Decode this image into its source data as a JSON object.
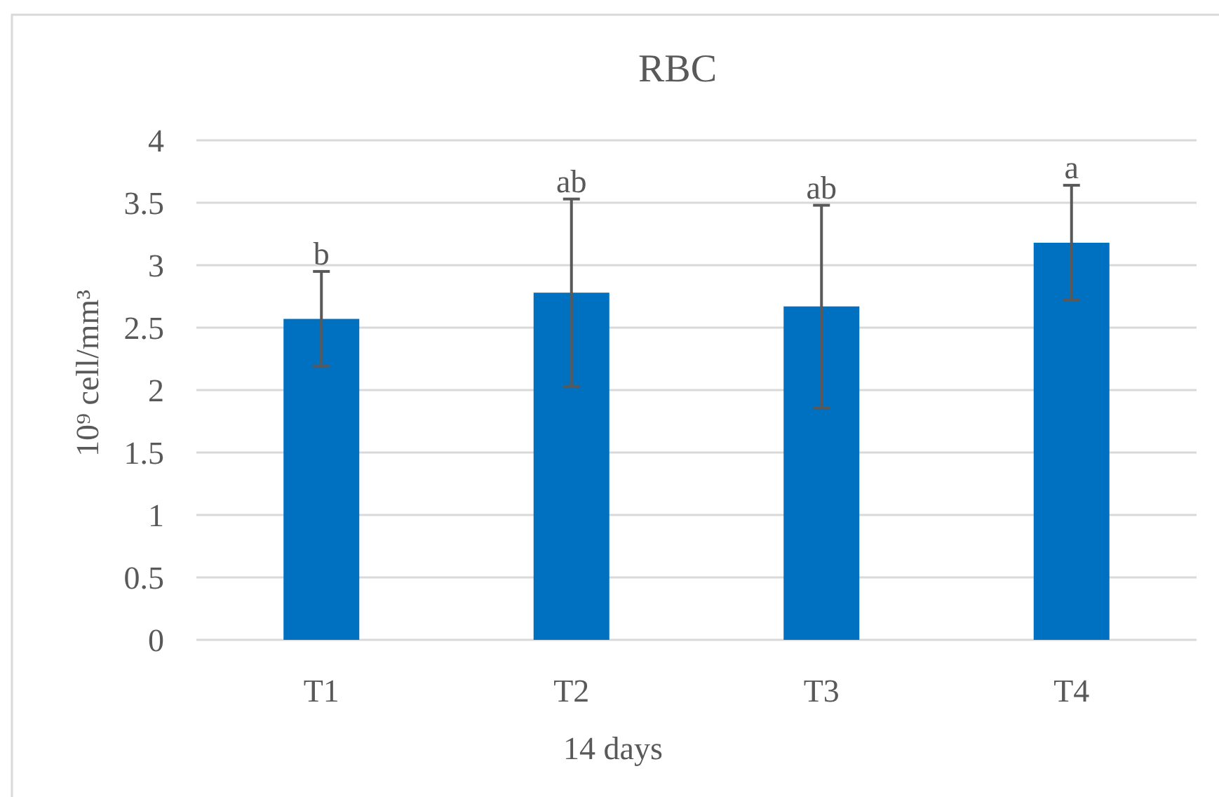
{
  "chart_data": {
    "type": "bar",
    "title": "RBC",
    "xlabel": "14 days",
    "ylabel": "10⁹ cell/mm³",
    "categories": [
      "T1",
      "T2",
      "T3",
      "T4"
    ],
    "values": [
      2.57,
      2.78,
      2.67,
      3.18
    ],
    "errors": [
      0.38,
      0.75,
      0.81,
      0.46
    ],
    "color": "#0070c0",
    "ylim": [
      0,
      4
    ],
    "yticks": [
      0,
      0.5,
      1,
      1.5,
      2,
      2.5,
      3,
      3.5,
      4
    ],
    "grid": "y",
    "annotations": [
      {
        "text": "b",
        "x": "T1",
        "y": 2.95
      },
      {
        "text": "ab",
        "x": "T2",
        "y": 3.53
      },
      {
        "text": "ab",
        "x": "T3",
        "y": 3.48
      },
      {
        "text": "a",
        "x": "T4",
        "y": 3.64
      }
    ]
  }
}
